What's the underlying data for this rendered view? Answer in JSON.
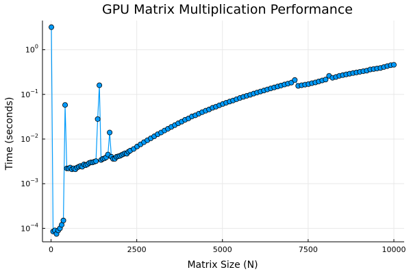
{
  "chart_data": {
    "type": "scatter",
    "title": "GPU Matrix Multiplication Performance",
    "xlabel": "Matrix Size (N)",
    "ylabel": "Time (seconds)",
    "xlim": [
      -250,
      10300
    ],
    "ylim": [
      5e-05,
      4.5
    ],
    "yscale": "log",
    "grid": true,
    "legend": "none",
    "x_ticks": [
      0,
      2500,
      5000,
      7500,
      10000
    ],
    "y_ticks": [
      {
        "value": 0.0001,
        "label": "10",
        "exp": "−4"
      },
      {
        "value": 0.001,
        "label": "10",
        "exp": "−3"
      },
      {
        "value": 0.01,
        "label": "10",
        "exp": "−2"
      },
      {
        "value": 0.1,
        "label": "10",
        "exp": "−1"
      },
      {
        "value": 1,
        "label": "10",
        "exp": "0"
      }
    ],
    "colors": {
      "series": "#009AFA",
      "marker_edge": "#000000"
    },
    "series": [
      {
        "x": [
          10,
          60,
          110,
          160,
          210,
          260,
          310,
          360,
          410,
          460,
          510,
          560,
          610,
          660,
          710,
          760,
          810,
          860,
          910,
          960,
          1010,
          1060,
          1110,
          1160,
          1210,
          1260,
          1310,
          1360,
          1410,
          1460,
          1510,
          1560,
          1610,
          1660,
          1710,
          1760,
          1810,
          1860,
          1910,
          1960,
          2010,
          2060,
          2110,
          2160,
          2210,
          2260,
          2310,
          2410,
          2510,
          2610,
          2710,
          2810,
          2910,
          3010,
          3110,
          3210,
          3310,
          3410,
          3510,
          3610,
          3710,
          3810,
          3910,
          4010,
          4110,
          4210,
          4310,
          4410,
          4510,
          4610,
          4710,
          4810,
          4910,
          5010,
          5110,
          5210,
          5310,
          5410,
          5510,
          5610,
          5710,
          5810,
          5910,
          6010,
          6110,
          6210,
          6310,
          6410,
          6510,
          6610,
          6710,
          6810,
          6910,
          7010,
          7110,
          7210,
          7310,
          7410,
          7510,
          7610,
          7710,
          7810,
          7910,
          8010,
          8110,
          8210,
          8310,
          8410,
          8510,
          8610,
          8710,
          8810,
          8910,
          9010,
          9110,
          9210,
          9310,
          9410,
          9510,
          9610,
          9710,
          9810,
          9910,
          10000
        ],
        "y": [
          3.2,
          8.5e-05,
          9e-05,
          7.5e-05,
          9e-05,
          0.0001,
          0.00012,
          0.00015,
          0.058,
          0.0022,
          0.0022,
          0.0023,
          0.0021,
          0.0022,
          0.0021,
          0.0023,
          0.0024,
          0.0025,
          0.0024,
          0.0027,
          0.0026,
          0.0027,
          0.0029,
          0.003,
          0.003,
          0.0031,
          0.0032,
          0.028,
          0.16,
          0.0034,
          0.0036,
          0.0037,
          0.0039,
          0.0045,
          0.014,
          0.004,
          0.0036,
          0.0036,
          0.004,
          0.0041,
          0.0042,
          0.0044,
          0.0046,
          0.0048,
          0.0047,
          0.0052,
          0.0055,
          0.006,
          0.0068,
          0.0076,
          0.0085,
          0.0094,
          0.0104,
          0.0115,
          0.0128,
          0.014,
          0.0155,
          0.017,
          0.0187,
          0.0205,
          0.0225,
          0.0245,
          0.027,
          0.029,
          0.032,
          0.034,
          0.037,
          0.04,
          0.043,
          0.046,
          0.05,
          0.053,
          0.057,
          0.061,
          0.065,
          0.069,
          0.073,
          0.078,
          0.083,
          0.088,
          0.093,
          0.098,
          0.104,
          0.11,
          0.116,
          0.122,
          0.129,
          0.136,
          0.143,
          0.15,
          0.158,
          0.166,
          0.174,
          0.183,
          0.21,
          0.155,
          0.16,
          0.165,
          0.17,
          0.178,
          0.185,
          0.195,
          0.205,
          0.215,
          0.26,
          0.235,
          0.245,
          0.26,
          0.27,
          0.28,
          0.29,
          0.3,
          0.31,
          0.32,
          0.33,
          0.34,
          0.36,
          0.37,
          0.38,
          0.39,
          0.41,
          0.43,
          0.45,
          0.46
        ]
      }
    ]
  }
}
